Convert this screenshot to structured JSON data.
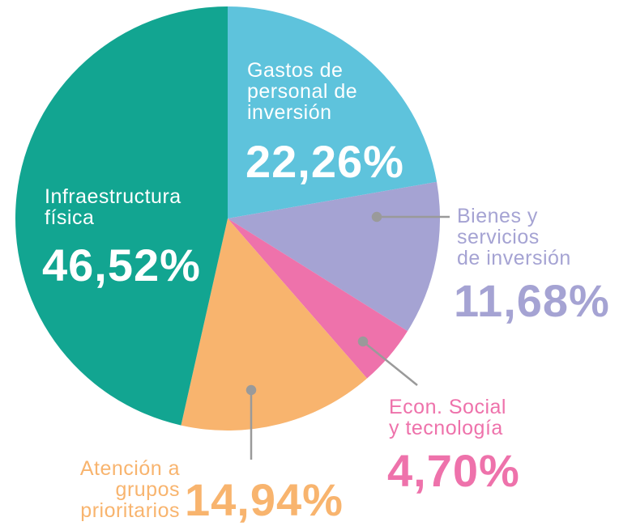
{
  "chart_data": {
    "type": "pie",
    "categories": [
      "Gastos de\npersonal de\ninversión",
      "Bienes y\nservicios\nde inversión",
      "Econ. Social\ny tecnología",
      "Atención a\ngrupos\nprioritarios",
      "Infraestructura\nfísica"
    ],
    "values": [
      22.26,
      11.68,
      4.7,
      14.94,
      46.52
    ],
    "value_labels": [
      "22,26%",
      "11,68%",
      "4,70%",
      "14,94%",
      "46,52%"
    ],
    "colors": [
      "#5ec3dc",
      "#a5a3d3",
      "#ee72ab",
      "#f8b46e",
      "#12a591"
    ]
  }
}
